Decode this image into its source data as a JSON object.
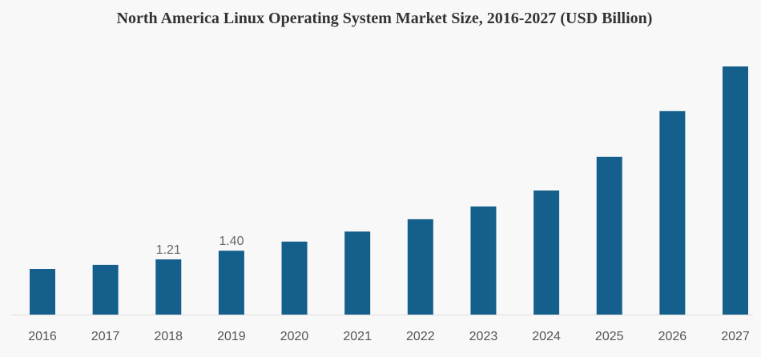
{
  "chart_data": {
    "type": "bar",
    "title": "North America Linux Operating System Market Size, 2016-2027 (USD Billion)",
    "categories": [
      "2016",
      "2017",
      "2018",
      "2019",
      "2020",
      "2021",
      "2022",
      "2023",
      "2024",
      "2025",
      "2026",
      "2027"
    ],
    "values": [
      1.0,
      1.09,
      1.21,
      1.4,
      1.6,
      1.82,
      2.09,
      2.37,
      2.72,
      3.46,
      4.46,
      5.44
    ],
    "value_labels": [
      null,
      null,
      "1.21",
      "1.40",
      null,
      null,
      null,
      null,
      null,
      null,
      null,
      null
    ],
    "color": "#155f8c"
  }
}
